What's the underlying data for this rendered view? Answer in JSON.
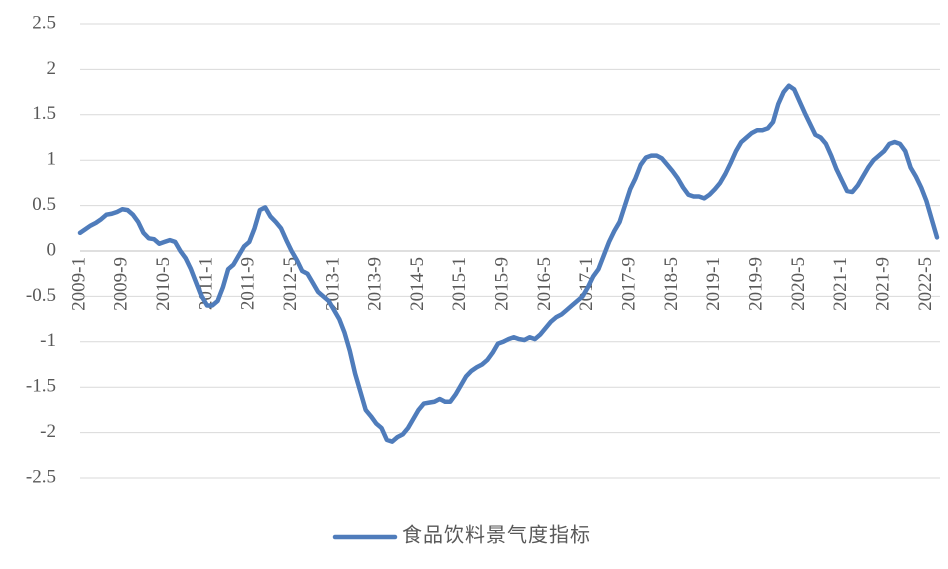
{
  "chart_data": {
    "type": "line",
    "categories": [
      "2009-1",
      null,
      null,
      null,
      null,
      null,
      null,
      null,
      "2009-9",
      null,
      null,
      null,
      null,
      null,
      null,
      null,
      "2010-5",
      null,
      null,
      null,
      null,
      null,
      null,
      null,
      "2011-1",
      null,
      null,
      null,
      null,
      null,
      null,
      null,
      "2011-9",
      null,
      null,
      null,
      null,
      null,
      null,
      null,
      "2012-5",
      null,
      null,
      null,
      null,
      null,
      null,
      null,
      "2013-1",
      null,
      null,
      null,
      null,
      null,
      null,
      null,
      "2013-9",
      null,
      null,
      null,
      null,
      null,
      null,
      null,
      "2014-5",
      null,
      null,
      null,
      null,
      null,
      null,
      null,
      "2015-1",
      null,
      null,
      null,
      null,
      null,
      null,
      null,
      "2015-9",
      null,
      null,
      null,
      null,
      null,
      null,
      null,
      "2016-5",
      null,
      null,
      null,
      null,
      null,
      null,
      null,
      "2017-1",
      null,
      null,
      null,
      null,
      null,
      null,
      null,
      "2017-9",
      null,
      null,
      null,
      null,
      null,
      null,
      null,
      "2018-5",
      null,
      null,
      null,
      null,
      null,
      null,
      null,
      "2019-1",
      null,
      null,
      null,
      null,
      null,
      null,
      null,
      "2019-9",
      null,
      null,
      null,
      null,
      null,
      null,
      null,
      "2020-5",
      null,
      null,
      null,
      null,
      null,
      null,
      null,
      "2021-1",
      null,
      null,
      null,
      null,
      null,
      null,
      null,
      "2021-9",
      null,
      null,
      null,
      null,
      null,
      null,
      null,
      "2022-5",
      null,
      null
    ],
    "series": [
      {
        "name": "食品饮料景气度指标",
        "color": "#4f7cbb",
        "values": [
          0.2,
          0.24,
          0.28,
          0.31,
          0.35,
          0.4,
          0.41,
          0.43,
          0.46,
          0.45,
          0.4,
          0.32,
          0.2,
          0.14,
          0.13,
          0.08,
          0.1,
          0.12,
          0.1,
          0.0,
          -0.08,
          -0.2,
          -0.35,
          -0.5,
          -0.6,
          -0.6,
          -0.55,
          -0.4,
          -0.2,
          -0.15,
          -0.05,
          0.05,
          0.1,
          0.25,
          0.45,
          0.48,
          0.38,
          0.32,
          0.25,
          0.12,
          0.0,
          -0.1,
          -0.22,
          -0.25,
          -0.35,
          -0.45,
          -0.5,
          -0.55,
          -0.65,
          -0.75,
          -0.9,
          -1.1,
          -1.35,
          -1.55,
          -1.75,
          -1.82,
          -1.9,
          -1.95,
          -2.08,
          -2.1,
          -2.05,
          -2.02,
          -1.95,
          -1.85,
          -1.75,
          -1.68,
          -1.67,
          -1.66,
          -1.63,
          -1.66,
          -1.66,
          -1.58,
          -1.48,
          -1.38,
          -1.32,
          -1.28,
          -1.25,
          -1.2,
          -1.12,
          -1.02,
          -1.0,
          -0.97,
          -0.95,
          -0.97,
          -0.98,
          -0.95,
          -0.97,
          -0.92,
          -0.85,
          -0.78,
          -0.73,
          -0.7,
          -0.65,
          -0.6,
          -0.55,
          -0.5,
          -0.4,
          -0.28,
          -0.2,
          -0.05,
          0.1,
          0.22,
          0.32,
          0.5,
          0.68,
          0.8,
          0.95,
          1.03,
          1.05,
          1.05,
          1.02,
          0.95,
          0.88,
          0.8,
          0.7,
          0.62,
          0.6,
          0.6,
          0.58,
          0.62,
          0.68,
          0.75,
          0.85,
          0.97,
          1.1,
          1.2,
          1.25,
          1.3,
          1.33,
          1.33,
          1.35,
          1.42,
          1.62,
          1.75,
          1.82,
          1.78,
          1.65,
          1.52,
          1.4,
          1.28,
          1.25,
          1.18,
          1.05,
          0.9,
          0.78,
          0.66,
          0.65,
          0.72,
          0.82,
          0.92,
          1.0,
          1.05,
          1.1,
          1.18,
          1.2,
          1.18,
          1.1,
          0.92,
          0.82,
          0.7,
          0.55,
          0.35,
          0.15
        ]
      }
    ],
    "ylim": [
      -2.5,
      2.5
    ],
    "yticks": [
      -2.5,
      -2,
      -1.5,
      -1,
      -0.5,
      0,
      0.5,
      1,
      1.5,
      2,
      2.5
    ],
    "grid": true,
    "legend": "bottom"
  }
}
